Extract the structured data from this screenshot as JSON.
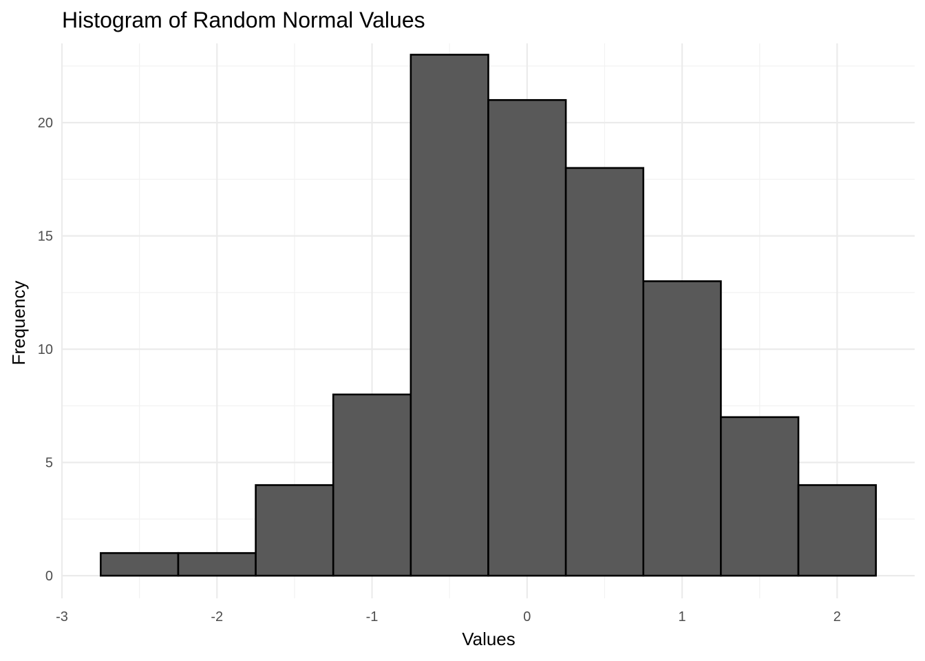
{
  "chart_data": {
    "type": "bar",
    "title": "Histogram of Random Normal Values",
    "xlabel": "Values",
    "ylabel": "Frequency",
    "bin_width": 0.5,
    "bins": [
      {
        "x0": -2.75,
        "x1": -2.25,
        "count": 1
      },
      {
        "x0": -2.25,
        "x1": -1.75,
        "count": 1
      },
      {
        "x0": -1.75,
        "x1": -1.25,
        "count": 4
      },
      {
        "x0": -1.25,
        "x1": -0.75,
        "count": 8
      },
      {
        "x0": -0.75,
        "x1": -0.25,
        "count": 23
      },
      {
        "x0": -0.25,
        "x1": 0.25,
        "count": 21
      },
      {
        "x0": 0.25,
        "x1": 0.75,
        "count": 18
      },
      {
        "x0": 0.75,
        "x1": 1.25,
        "count": 13
      },
      {
        "x0": 1.25,
        "x1": 1.75,
        "count": 7
      },
      {
        "x0": 1.75,
        "x1": 2.25,
        "count": 4
      }
    ],
    "xlim": [
      -3.0,
      2.5
    ],
    "ylim": [
      -1.0,
      23.5
    ],
    "x_ticks": [
      -3,
      -2,
      -1,
      0,
      1,
      2
    ],
    "x_tick_labels": [
      "-3",
      "-2",
      "-1",
      "0",
      "1",
      "2"
    ],
    "y_ticks": [
      0,
      5,
      10,
      15,
      20
    ],
    "y_tick_labels": [
      "0",
      "5",
      "10",
      "15",
      "20"
    ],
    "grid": true,
    "legend": "none",
    "colors": {
      "bar_fill": "#595959",
      "bar_outline": "#000000"
    }
  }
}
